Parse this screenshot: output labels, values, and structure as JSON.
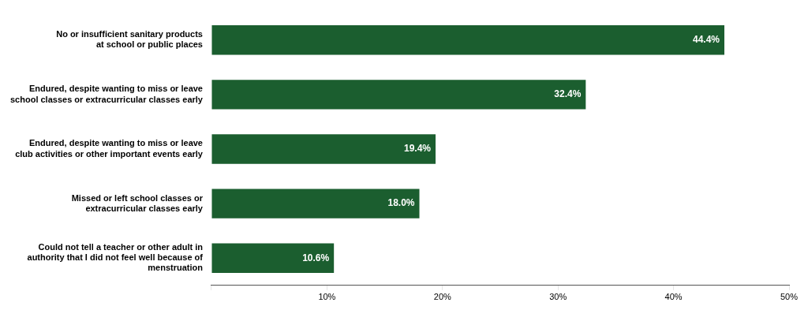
{
  "chart_data": {
    "type": "bar",
    "orientation": "horizontal",
    "categories": [
      "Could not tell a teacher or other adult in\nauthority that I did not feel well because of\nmenstruation",
      "Missed or left school classes or\nextracurricular classes early",
      "Endured, despite wanting to miss or leave\nclub activities or other important events early",
      "Endured, despite wanting to miss or leave\nschool classes or extracurricular classes early",
      "No or insufficient sanitary products\nat school or public places"
    ],
    "values": [
      10.6,
      18.0,
      19.4,
      32.4,
      44.4
    ],
    "value_labels": [
      "10.6%",
      "18.0%",
      "19.4%",
      "32.4%",
      "44.4%"
    ],
    "data_labels": true,
    "color": "#1b5e2f",
    "xlim": [
      0,
      50
    ],
    "xticks": [
      {
        "value": 0,
        "label": null
      },
      {
        "value": 10,
        "label": "10%"
      },
      {
        "value": 20,
        "label": "20%"
      },
      {
        "value": 30,
        "label": "30%"
      },
      {
        "value": 40,
        "label": "40%"
      },
      {
        "value": 50,
        "label": "50%"
      }
    ],
    "grid": false
  }
}
